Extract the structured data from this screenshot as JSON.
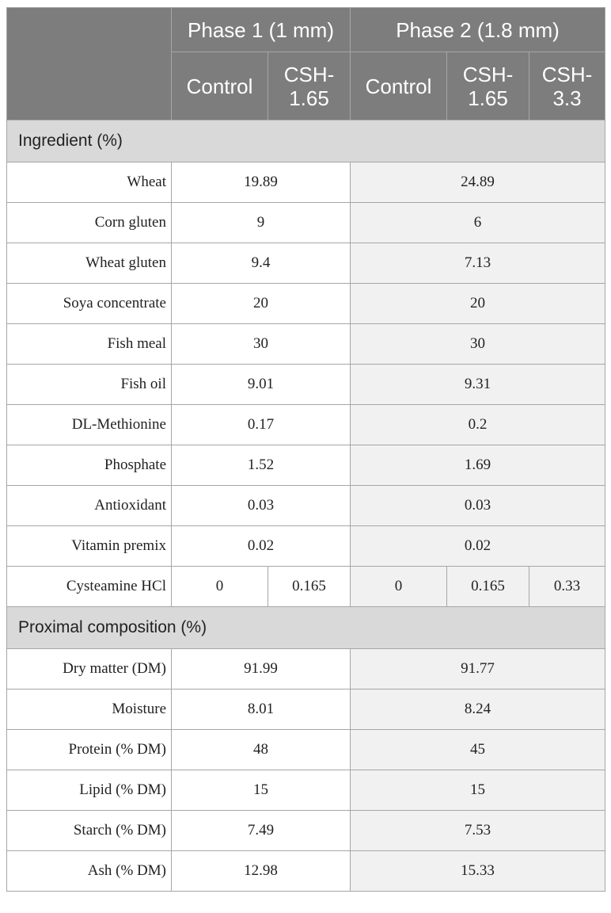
{
  "header": {
    "phase1": "Phase 1 (1 mm)",
    "phase2": "Phase 2 (1.8 mm)",
    "p1_cols": [
      "Control",
      "CSH-\n1.65"
    ],
    "p2_cols": [
      "Control",
      "CSH-\n1.65",
      "CSH-\n3.3"
    ]
  },
  "sections": {
    "ingredient": "Ingredient (%)",
    "proximal": "Proximal composition (%)"
  },
  "ingredients": [
    {
      "label": "Wheat",
      "p1": "19.89",
      "p2": "24.89"
    },
    {
      "label": "Corn gluten",
      "p1": "9",
      "p2": "6"
    },
    {
      "label": "Wheat gluten",
      "p1": "9.4",
      "p2": "7.13"
    },
    {
      "label": "Soya concentrate",
      "p1": "20",
      "p2": "20"
    },
    {
      "label": "Fish meal",
      "p1": "30",
      "p2": "30"
    },
    {
      "label": "Fish oil",
      "p1": "9.01",
      "p2": "9.31"
    },
    {
      "label": "DL-Methionine",
      "p1": "0.17",
      "p2": "0.2"
    },
    {
      "label": "Phosphate",
      "p1": "1.52",
      "p2": "1.69"
    },
    {
      "label": "Antioxidant",
      "p1": "0.03",
      "p2": "0.03"
    },
    {
      "label": "Vitamin premix",
      "p1": "0.02",
      "p2": "0.02"
    }
  ],
  "cysteamine": {
    "label": "Cysteamine HCl",
    "p1": [
      "0",
      "0.165"
    ],
    "p2": [
      "0",
      "0.165",
      "0.33"
    ]
  },
  "composition": [
    {
      "label": "Dry matter (DM)",
      "p1": "91.99",
      "p2": "91.77"
    },
    {
      "label": "Moisture",
      "p1": "8.01",
      "p2": "8.24"
    },
    {
      "label": "Protein (% DM)",
      "p1": "48",
      "p2": "45"
    },
    {
      "label": "Lipid (% DM)",
      "p1": "15",
      "p2": "15"
    },
    {
      "label": "Starch (% DM)",
      "p1": "7.49",
      "p2": "7.53"
    },
    {
      "label": "Ash (% DM)",
      "p1": "12.98",
      "p2": "15.33"
    }
  ]
}
